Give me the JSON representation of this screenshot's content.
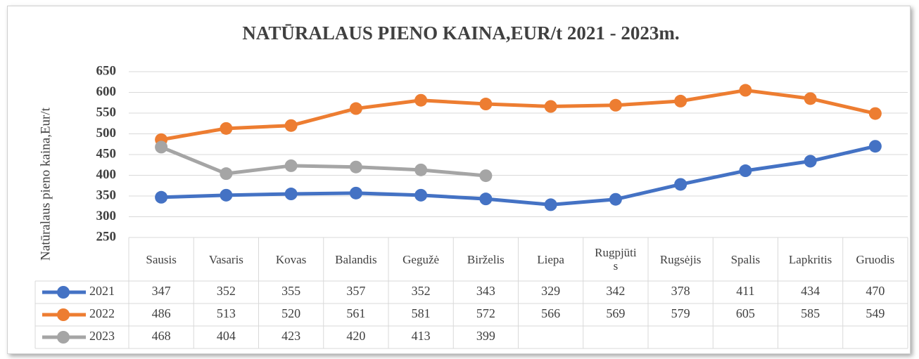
{
  "chart_data": {
    "type": "line",
    "title": "NATŪRALAUS PIENO KAINA,EUR/t 2021 - 2023m.",
    "y_label": "Natūralaus pieno kaina,Eur/t",
    "categories": [
      "Sausis",
      "Vasaris",
      "Kovas",
      "Balandis",
      "Gegužė",
      "Birželis",
      "Liepa",
      "Rugpjūtis",
      "Rugsėjis",
      "Spalis",
      "Lapkritis",
      "Gruodis"
    ],
    "series": [
      {
        "name": "2021",
        "color": "#4472c4",
        "values": [
          347,
          352,
          355,
          357,
          352,
          343,
          329,
          342,
          378,
          411,
          434,
          470
        ]
      },
      {
        "name": "2022",
        "color": "#ed7d31",
        "values": [
          486,
          513,
          520,
          561,
          581,
          572,
          566,
          569,
          579,
          605,
          585,
          549
        ]
      },
      {
        "name": "2023",
        "color": "#a5a5a5",
        "values": [
          468,
          404,
          423,
          420,
          413,
          399,
          null,
          null,
          null,
          null,
          null,
          null
        ]
      }
    ],
    "ylim": [
      250,
      650
    ],
    "yticks": [
      250,
      300,
      350,
      400,
      450,
      500,
      550,
      600,
      650
    ],
    "grid": true,
    "data_table": true
  }
}
